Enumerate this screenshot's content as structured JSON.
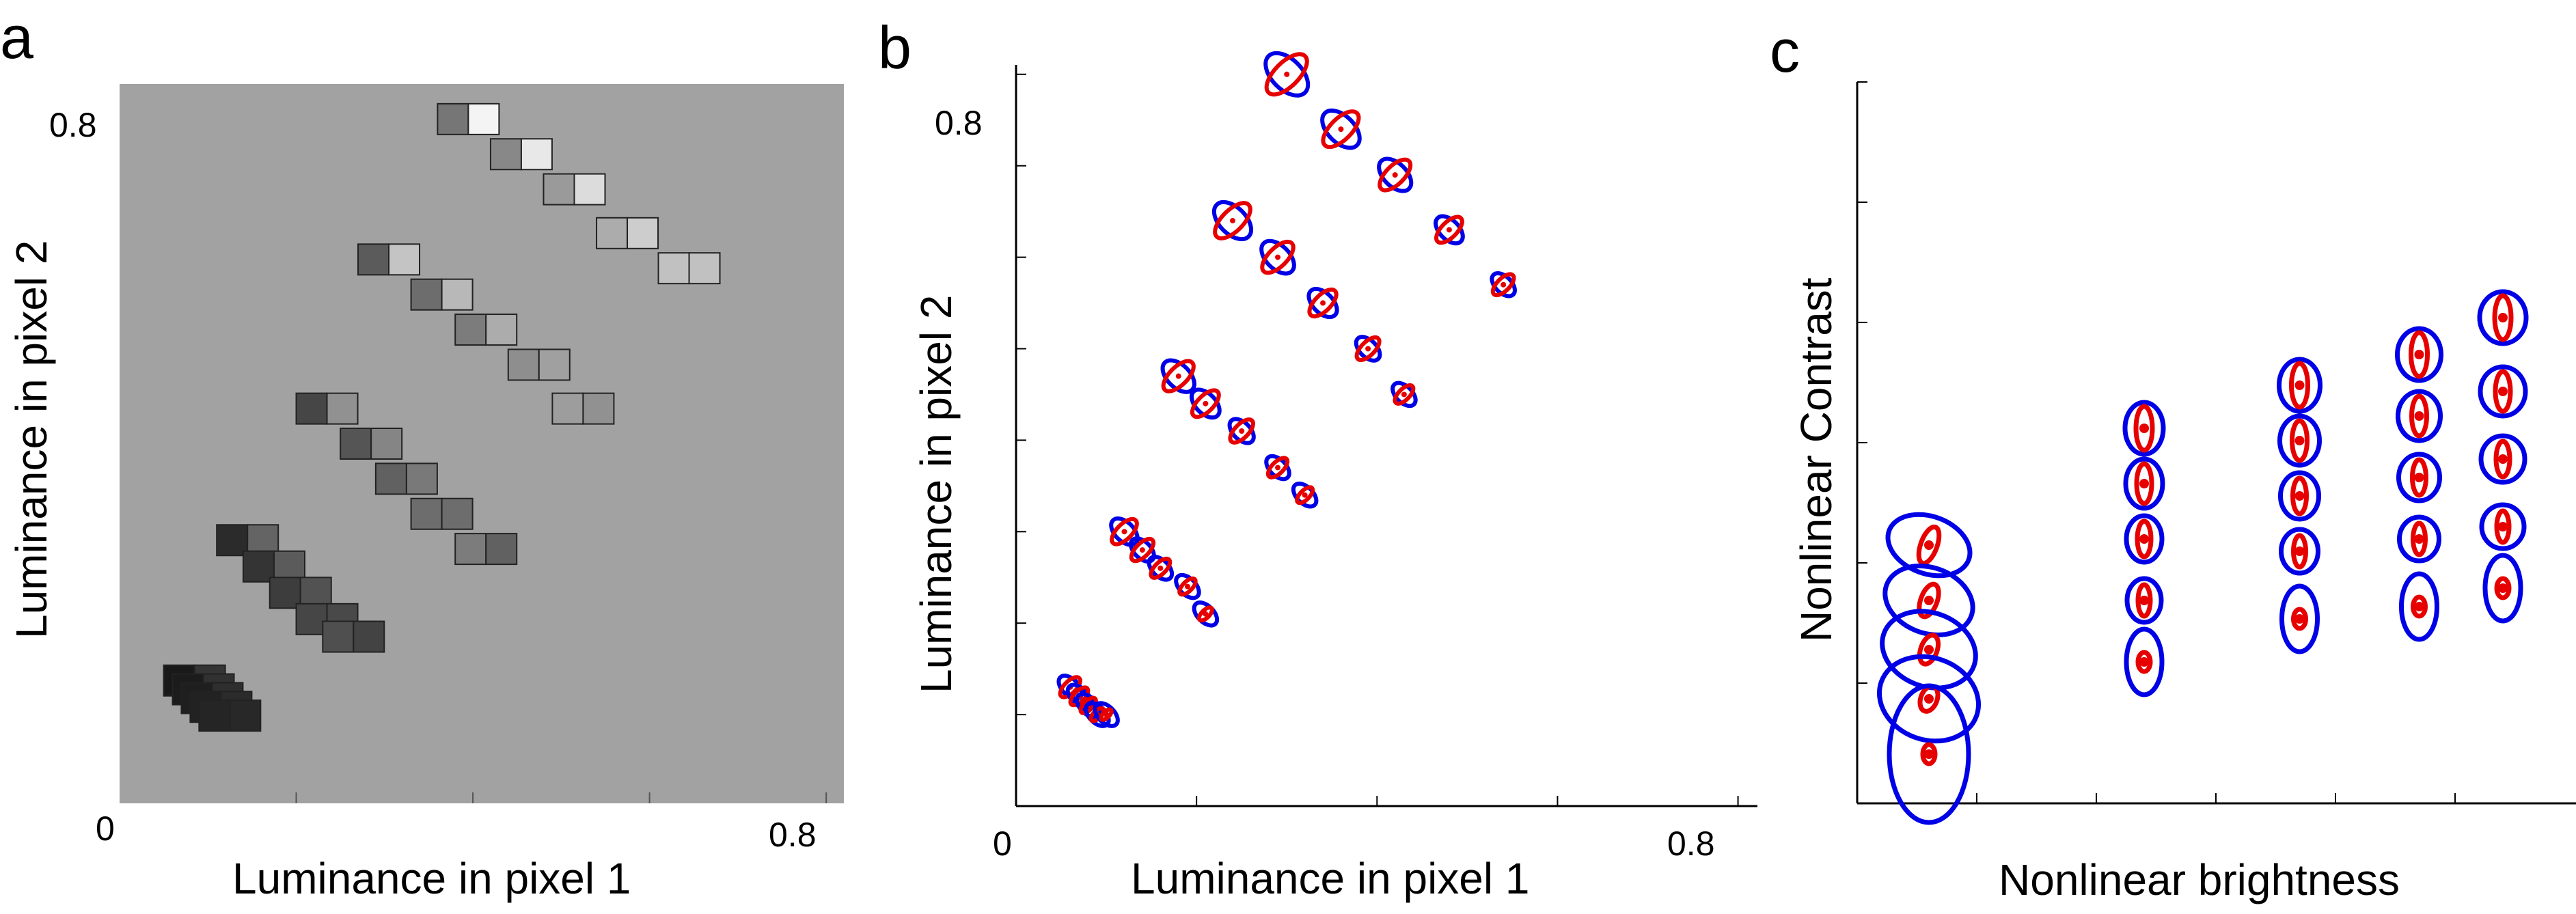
{
  "colors": {
    "panel_a_background": "#a2a2a2",
    "ellipse_blue": "#0000e6",
    "ellipse_red": "#e60000",
    "axis": "#000000"
  },
  "panels": [
    {
      "letter": "a",
      "xlabel": "Luminance in pixel 1",
      "ylabel": "Luminance in pixel 2",
      "xticklabels": [
        "0",
        "0.8"
      ],
      "yticklabels": [
        "0.8"
      ]
    },
    {
      "letter": "b",
      "xlabel": "Luminance in pixel 1",
      "ylabel": "Luminance in pixel 2",
      "xticklabels": [
        "0",
        "0.8"
      ],
      "yticklabels": [
        "0.8"
      ]
    },
    {
      "letter": "c",
      "xlabel": "Nonlinear brightness",
      "ylabel": "Nonlinear Contrast",
      "xticklabels": [],
      "yticklabels": []
    }
  ],
  "chart_data": [
    {
      "type": "scatter",
      "panel": "a",
      "description_of_marks": "pixel-pair stimuli drawn as two adjacent grey squares",
      "xlabel": "Luminance in pixel 1",
      "ylabel": "Luminance in pixel 2",
      "xlim": [
        0,
        0.82
      ],
      "ylim": [
        0,
        0.82
      ],
      "series": [
        {
          "points": [
            [
              0.05,
              0.14
            ],
            [
              0.06,
              0.13
            ],
            [
              0.07,
              0.12
            ],
            [
              0.08,
              0.11
            ],
            [
              0.09,
              0.1
            ]
          ]
        },
        {
          "points": [
            [
              0.11,
              0.3
            ],
            [
              0.14,
              0.27
            ],
            [
              0.17,
              0.24
            ],
            [
              0.2,
              0.21
            ],
            [
              0.23,
              0.19
            ]
          ]
        },
        {
          "points": [
            [
              0.2,
              0.45
            ],
            [
              0.25,
              0.41
            ],
            [
              0.29,
              0.37
            ],
            [
              0.33,
              0.33
            ],
            [
              0.38,
              0.29
            ]
          ]
        },
        {
          "points": [
            [
              0.27,
              0.62
            ],
            [
              0.33,
              0.58
            ],
            [
              0.38,
              0.54
            ],
            [
              0.44,
              0.5
            ],
            [
              0.49,
              0.45
            ]
          ]
        },
        {
          "points": [
            [
              0.36,
              0.78
            ],
            [
              0.42,
              0.74
            ],
            [
              0.48,
              0.7
            ],
            [
              0.54,
              0.65
            ],
            [
              0.61,
              0.61
            ]
          ]
        }
      ]
    },
    {
      "type": "scatter",
      "panel": "b",
      "description_of_marks": "discrimination ellipses, blue and red pairs",
      "xlabel": "Luminance in pixel 1",
      "ylabel": "Luminance in pixel 2",
      "xlim": [
        0,
        0.82
      ],
      "ylim": [
        0,
        0.82
      ],
      "series": [
        {
          "points": [
            [
              0.06,
              0.13
            ],
            [
              0.07,
              0.12
            ],
            [
              0.08,
              0.11
            ],
            [
              0.09,
              0.1
            ],
            [
              0.1,
              0.1
            ]
          ]
        },
        {
          "points": [
            [
              0.12,
              0.3
            ],
            [
              0.14,
              0.28
            ],
            [
              0.16,
              0.26
            ],
            [
              0.19,
              0.24
            ],
            [
              0.21,
              0.21
            ]
          ]
        },
        {
          "points": [
            [
              0.18,
              0.47
            ],
            [
              0.21,
              0.44
            ],
            [
              0.25,
              0.41
            ],
            [
              0.29,
              0.37
            ],
            [
              0.32,
              0.34
            ]
          ]
        },
        {
          "points": [
            [
              0.24,
              0.64
            ],
            [
              0.29,
              0.6
            ],
            [
              0.34,
              0.55
            ],
            [
              0.39,
              0.5
            ],
            [
              0.43,
              0.45
            ]
          ]
        },
        {
          "points": [
            [
              0.3,
              0.8
            ],
            [
              0.36,
              0.74
            ],
            [
              0.42,
              0.69
            ],
            [
              0.48,
              0.63
            ],
            [
              0.54,
              0.57
            ]
          ]
        }
      ]
    },
    {
      "type": "scatter",
      "panel": "c",
      "description_of_marks": "discrimination ellipses in transformed space, blue and red pairs",
      "xlabel": "Nonlinear brightness",
      "ylabel": "Nonlinear Contrast",
      "series": [
        {
          "points": [
            [
              0.6,
              4.2
            ],
            [
              0.6,
              3.3
            ],
            [
              0.6,
              2.5
            ],
            [
              0.6,
              1.7
            ],
            [
              0.6,
              0.8
            ]
          ]
        },
        {
          "points": [
            [
              2.4,
              6.1
            ],
            [
              2.4,
              5.2
            ],
            [
              2.4,
              4.3
            ],
            [
              2.4,
              3.3
            ],
            [
              2.4,
              2.3
            ]
          ]
        },
        {
          "points": [
            [
              3.7,
              6.8
            ],
            [
              3.7,
              5.9
            ],
            [
              3.7,
              5.0
            ],
            [
              3.7,
              4.1
            ],
            [
              3.7,
              3.0
            ]
          ]
        },
        {
          "points": [
            [
              4.7,
              7.3
            ],
            [
              4.7,
              6.3
            ],
            [
              4.7,
              5.3
            ],
            [
              4.7,
              4.3
            ],
            [
              4.7,
              3.2
            ]
          ]
        },
        {
          "points": [
            [
              5.4,
              7.9
            ],
            [
              5.4,
              6.7
            ],
            [
              5.4,
              5.6
            ],
            [
              5.4,
              4.5
            ],
            [
              5.4,
              3.5
            ]
          ]
        }
      ]
    }
  ]
}
